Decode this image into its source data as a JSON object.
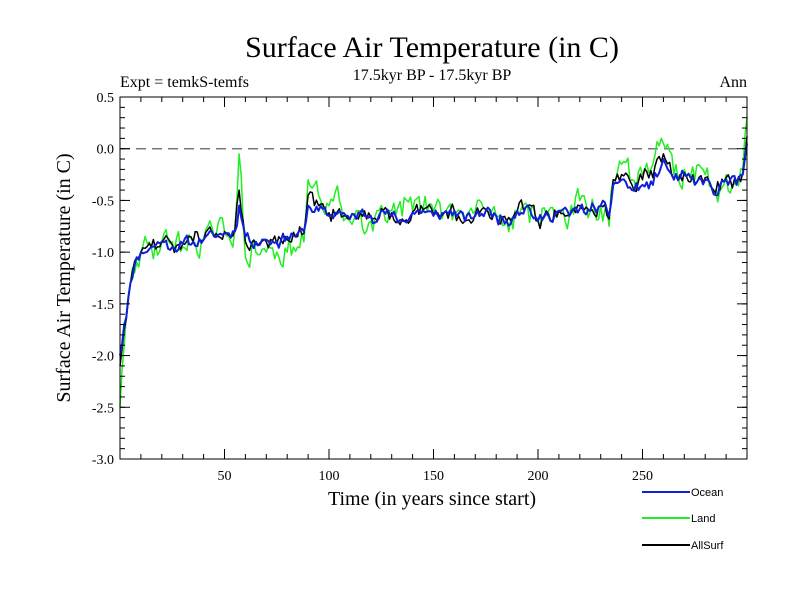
{
  "chart_data": {
    "type": "line",
    "title": "Surface Air Temperature (in C)",
    "subtitle": "17.5kyr BP - 17.5kyr BP",
    "left_label": "Expt = temkS-temfs",
    "right_label": "Ann",
    "xlabel": "Time (in years since start)",
    "ylabel": "Surface Air Temperature (in C)",
    "xlim": [
      0,
      300
    ],
    "ylim": [
      -3.0,
      0.5
    ],
    "x_ticks": [
      50,
      100,
      150,
      200,
      250
    ],
    "y_ticks": [
      -3.0,
      -2.5,
      -2.0,
      -1.5,
      -1.0,
      -0.5,
      0.0,
      0.5
    ],
    "y_tick_labels": [
      "-3.0",
      "-2.5",
      "-2.0",
      "-1.5",
      "-1.0",
      "-0.5",
      "0.0",
      "0.5"
    ],
    "reference_line": 0.0,
    "anchor_x": [
      0,
      2,
      5,
      8,
      10,
      15,
      20,
      25,
      30,
      35,
      40,
      45,
      50,
      55,
      57,
      60,
      65,
      70,
      75,
      80,
      85,
      88,
      90,
      95,
      100,
      105,
      110,
      115,
      120,
      125,
      130,
      135,
      140,
      145,
      150,
      155,
      160,
      165,
      170,
      175,
      180,
      185,
      190,
      195,
      200,
      205,
      210,
      215,
      220,
      225,
      230,
      234,
      236,
      240,
      245,
      250,
      255,
      260,
      265,
      270,
      275,
      280,
      285,
      290,
      295,
      298,
      300
    ],
    "series": [
      {
        "name": "Ocean",
        "color": "#1020d8",
        "anchors": [
          -2.0,
          -1.7,
          -1.3,
          -1.05,
          -1.0,
          -0.95,
          -0.9,
          -0.95,
          -0.92,
          -0.9,
          -0.88,
          -0.85,
          -0.82,
          -0.8,
          -0.55,
          -0.85,
          -0.9,
          -0.88,
          -0.9,
          -0.85,
          -0.82,
          -0.8,
          -0.55,
          -0.6,
          -0.65,
          -0.6,
          -0.68,
          -0.62,
          -0.65,
          -0.6,
          -0.65,
          -0.7,
          -0.62,
          -0.6,
          -0.65,
          -0.62,
          -0.6,
          -0.7,
          -0.65,
          -0.6,
          -0.65,
          -0.7,
          -0.6,
          -0.55,
          -0.7,
          -0.65,
          -0.6,
          -0.65,
          -0.58,
          -0.6,
          -0.55,
          -0.65,
          -0.35,
          -0.3,
          -0.4,
          -0.35,
          -0.35,
          -0.1,
          -0.3,
          -0.25,
          -0.35,
          -0.3,
          -0.45,
          -0.3,
          -0.35,
          -0.25,
          0.05
        ],
        "amplitude": 0.1,
        "seed": 11
      },
      {
        "name": "Land",
        "color": "#22ee22",
        "anchors": [
          -2.5,
          -1.9,
          -1.3,
          -1.1,
          -1.0,
          -0.95,
          -0.9,
          -0.9,
          -0.95,
          -0.9,
          -0.88,
          -0.85,
          -0.8,
          -0.78,
          -0.05,
          -1.05,
          -1.0,
          -1.0,
          -1.0,
          -1.0,
          -0.95,
          -0.9,
          -0.3,
          -0.45,
          -0.55,
          -0.5,
          -0.7,
          -0.6,
          -0.7,
          -0.55,
          -0.6,
          -0.65,
          -0.6,
          -0.58,
          -0.6,
          -0.62,
          -0.6,
          -0.7,
          -0.6,
          -0.58,
          -0.65,
          -0.7,
          -0.62,
          -0.55,
          -0.7,
          -0.6,
          -0.6,
          -0.65,
          -0.5,
          -0.6,
          -0.55,
          -0.75,
          -0.3,
          -0.15,
          -0.3,
          -0.25,
          -0.15,
          0.05,
          -0.25,
          -0.2,
          -0.3,
          -0.25,
          -0.4,
          -0.25,
          -0.3,
          -0.2,
          0.3
        ],
        "amplitude": 0.22,
        "seed": 29
      },
      {
        "name": "AllSurf",
        "color": "#000000",
        "anchors": [
          -2.1,
          -1.75,
          -1.3,
          -1.05,
          -1.0,
          -0.95,
          -0.9,
          -0.93,
          -0.92,
          -0.9,
          -0.88,
          -0.85,
          -0.8,
          -0.78,
          -0.4,
          -0.9,
          -0.92,
          -0.9,
          -0.92,
          -0.88,
          -0.85,
          -0.82,
          -0.45,
          -0.55,
          -0.62,
          -0.58,
          -0.68,
          -0.62,
          -0.66,
          -0.58,
          -0.62,
          -0.68,
          -0.61,
          -0.59,
          -0.63,
          -0.62,
          -0.6,
          -0.7,
          -0.63,
          -0.59,
          -0.65,
          -0.7,
          -0.61,
          -0.55,
          -0.7,
          -0.63,
          -0.6,
          -0.65,
          -0.55,
          -0.6,
          -0.55,
          -0.68,
          -0.3,
          -0.25,
          -0.35,
          -0.3,
          -0.28,
          -0.05,
          -0.28,
          -0.23,
          -0.33,
          -0.28,
          -0.43,
          -0.28,
          -0.33,
          -0.23,
          0.12
        ],
        "amplitude": 0.13,
        "seed": 47
      }
    ],
    "legend": {
      "position": "bottom-right",
      "entries": [
        "Ocean",
        "Land",
        "AllSurf"
      ]
    }
  }
}
